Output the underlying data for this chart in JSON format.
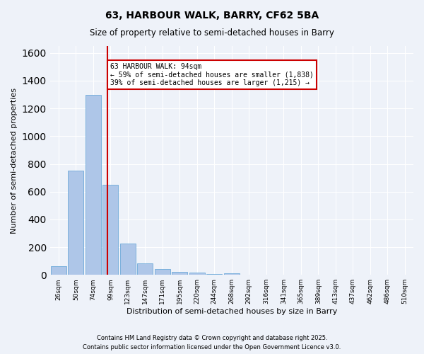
{
  "title1": "63, HARBOUR WALK, BARRY, CF62 5BA",
  "title2": "Size of property relative to semi-detached houses in Barry",
  "xlabel": "Distribution of semi-detached houses by size in Barry",
  "ylabel": "Number of semi-detached properties",
  "footnote1": "Contains HM Land Registry data © Crown copyright and database right 2025.",
  "footnote2": "Contains public sector information licensed under the Open Government Licence v3.0.",
  "bin_labels": [
    "26sqm",
    "50sqm",
    "74sqm",
    "99sqm",
    "123sqm",
    "147sqm",
    "171sqm",
    "195sqm",
    "220sqm",
    "244sqm",
    "268sqm",
    "292sqm",
    "316sqm",
    "341sqm",
    "365sqm",
    "389sqm",
    "413sqm",
    "437sqm",
    "462sqm",
    "486sqm",
    "510sqm"
  ],
  "bar_values": [
    60,
    750,
    1300,
    650,
    225,
    85,
    40,
    20,
    15,
    5,
    10,
    0,
    0,
    0,
    0,
    0,
    0,
    0,
    0,
    0,
    0
  ],
  "bar_color": "#aec6e8",
  "bar_edge_color": "#5a9fd4",
  "background_color": "#eef2f9",
  "grid_color": "#ffffff",
  "vline_x": 2.83,
  "vline_color": "#cc0000",
  "annotation_title": "63 HARBOUR WALK: 94sqm",
  "annotation_line1": "← 59% of semi-detached houses are smaller (1,838)",
  "annotation_line2": "39% of semi-detached houses are larger (1,215) →",
  "annotation_box_color": "#ffffff",
  "annotation_border_color": "#cc0000",
  "ylim": [
    0,
    1650
  ],
  "yticks": [
    0,
    200,
    400,
    600,
    800,
    1000,
    1200,
    1400,
    1600
  ]
}
